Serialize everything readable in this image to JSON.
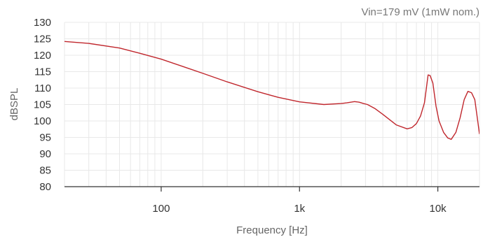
{
  "chart_data": {
    "type": "line",
    "annotation": "Vin=179 mV (1mW nom.)",
    "xlabel": "Frequency [Hz]",
    "ylabel": "dBSPL",
    "x_scale": "log",
    "xlim": [
      20,
      20000
    ],
    "ylim": [
      80,
      130
    ],
    "x_ticks": [
      {
        "value": 100,
        "label": "100"
      },
      {
        "value": 1000,
        "label": "1k"
      },
      {
        "value": 10000,
        "label": "10k"
      }
    ],
    "y_ticks": [
      80,
      85,
      90,
      95,
      100,
      105,
      110,
      115,
      120,
      125,
      130
    ],
    "grid": true,
    "colors": {
      "line": "#c0272d",
      "grid": "#e8e8e8",
      "axis": "#333333"
    },
    "series": [
      {
        "x": [
          20,
          30,
          50,
          70,
          100,
          150,
          200,
          300,
          500,
          700,
          1000,
          1500,
          2000,
          2200,
          2500,
          2700,
          2900,
          3100,
          3500,
          4000,
          5000,
          6000,
          6500,
          7000,
          7500,
          8000,
          8500,
          8800,
          9200,
          9700,
          10200,
          11000,
          11800,
          12500,
          13500,
          14500,
          15500,
          16500,
          17500,
          18500,
          19500,
          20000
        ],
        "y": [
          124.2,
          123.6,
          122.2,
          120.6,
          118.8,
          116.3,
          114.5,
          111.9,
          108.9,
          107.2,
          105.8,
          105.0,
          105.3,
          105.5,
          105.9,
          105.7,
          105.3,
          105.0,
          103.8,
          102.0,
          98.8,
          97.6,
          98.0,
          99.2,
          101.5,
          105.5,
          114.0,
          113.8,
          111.5,
          104.5,
          100.0,
          96.5,
          94.8,
          94.4,
          96.5,
          101.0,
          106.5,
          109.0,
          108.6,
          106.5,
          99.5,
          96.0
        ]
      }
    ]
  }
}
